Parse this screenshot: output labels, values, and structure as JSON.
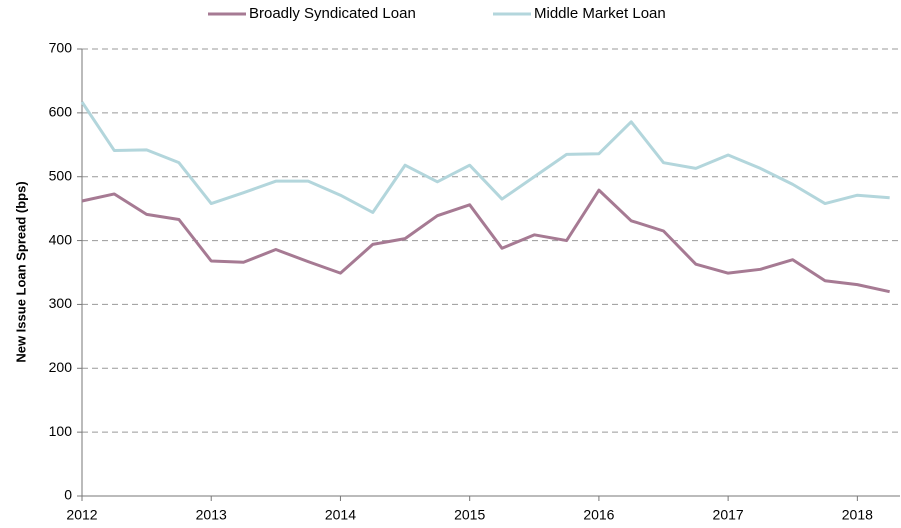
{
  "chart_data": {
    "type": "line",
    "y_label": "New Issue  Loan Spread (bps)",
    "x": [
      2012,
      2012.25,
      2012.5,
      2012.75,
      2013,
      2013.25,
      2013.5,
      2013.75,
      2014,
      2014.25,
      2014.5,
      2014.75,
      2015,
      2015.25,
      2015.5,
      2015.75,
      2016,
      2016.25,
      2016.5,
      2016.75,
      2017,
      2017.25,
      2017.5,
      2017.75,
      2018,
      2018.25
    ],
    "series": [
      {
        "name": "Broadly Syndicated Loan",
        "color": "#a67a93",
        "values": [
          462,
          473,
          441,
          433,
          368,
          366,
          386,
          367,
          349,
          394,
          403,
          439,
          456,
          388,
          409,
          400,
          479,
          431,
          415,
          363,
          349,
          355,
          370,
          337,
          331,
          320
        ]
      },
      {
        "name": "Middle Market Loan",
        "color": "#b3d6dc",
        "values": [
          617,
          541,
          542,
          522,
          458,
          475,
          493,
          493,
          471,
          444,
          518,
          492,
          518,
          465,
          500,
          535,
          536,
          586,
          522,
          513,
          534,
          513,
          488,
          458,
          471,
          467
        ]
      }
    ],
    "xlim": [
      2012,
      2018.33
    ],
    "xticks": [
      2012,
      2013,
      2014,
      2015,
      2016,
      2017,
      2018
    ],
    "ylim": [
      0,
      700
    ],
    "yticks": [
      0,
      100,
      200,
      300,
      400,
      500,
      600,
      700
    ],
    "grid": true,
    "legend": "top"
  }
}
